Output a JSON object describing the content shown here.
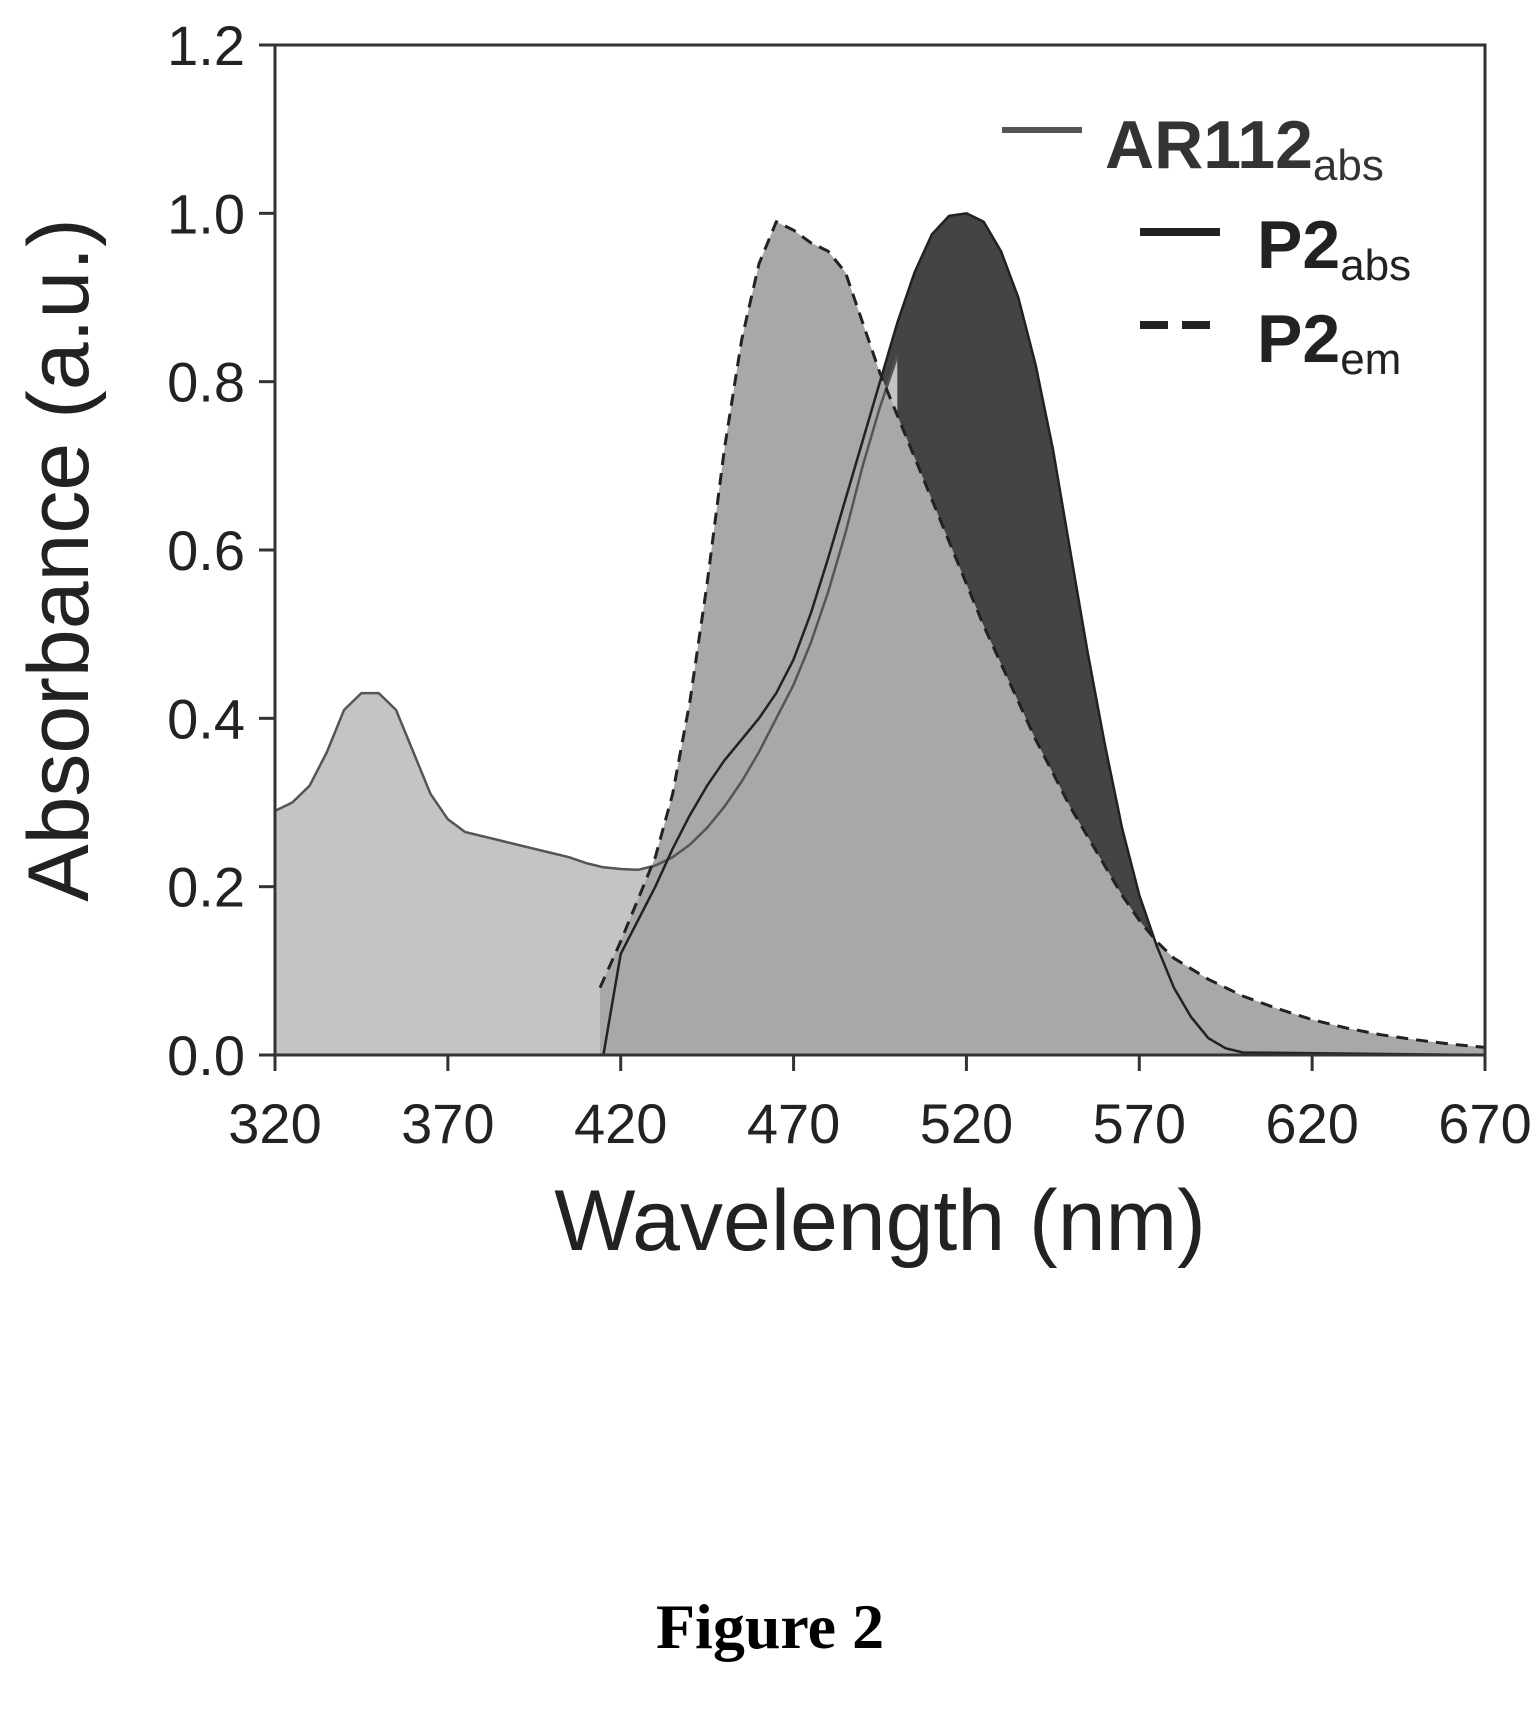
{
  "figure_caption": "Figure 2",
  "chart_data": {
    "type": "line",
    "xlabel": "Wavelength (nm)",
    "ylabel": "Absorbance (a.u.)",
    "xlim": [
      320,
      670
    ],
    "ylim": [
      0,
      1.2
    ],
    "x_ticks": [
      "320",
      "370",
      "420",
      "470",
      "520",
      "570",
      "620",
      "670"
    ],
    "y_ticks": [
      "0.0",
      "0.2",
      "0.4",
      "0.6",
      "0.8",
      "1.0",
      "1.2"
    ],
    "grid": false,
    "legend_position": "top-right",
    "series": [
      {
        "name": "AR112",
        "name_subscript": "abs",
        "style": "thin-solid",
        "fill": "#c4c4c4",
        "stroke": "#555555",
        "points": [
          [
            320,
            0.29
          ],
          [
            325,
            0.3
          ],
          [
            330,
            0.32
          ],
          [
            335,
            0.36
          ],
          [
            340,
            0.41
          ],
          [
            345,
            0.43
          ],
          [
            350,
            0.43
          ],
          [
            355,
            0.41
          ],
          [
            360,
            0.36
          ],
          [
            365,
            0.31
          ],
          [
            370,
            0.28
          ],
          [
            375,
            0.265
          ],
          [
            380,
            0.26
          ],
          [
            385,
            0.255
          ],
          [
            390,
            0.25
          ],
          [
            395,
            0.245
          ],
          [
            400,
            0.24
          ],
          [
            405,
            0.235
          ],
          [
            410,
            0.228
          ],
          [
            415,
            0.223
          ],
          [
            420,
            0.221
          ],
          [
            425,
            0.22
          ],
          [
            430,
            0.225
          ],
          [
            435,
            0.235
          ],
          [
            440,
            0.25
          ],
          [
            445,
            0.27
          ],
          [
            450,
            0.295
          ],
          [
            455,
            0.325
          ],
          [
            460,
            0.36
          ],
          [
            465,
            0.4
          ],
          [
            470,
            0.44
          ],
          [
            475,
            0.49
          ],
          [
            480,
            0.55
          ],
          [
            485,
            0.62
          ],
          [
            490,
            0.7
          ],
          [
            495,
            0.77
          ],
          [
            500,
            0.83
          ]
        ]
      },
      {
        "name": "P2",
        "name_subscript": "abs",
        "style": "bold-solid",
        "fill": "#444444",
        "stroke": "#222222",
        "points": [
          [
            320,
            0.0
          ],
          [
            415,
            0.0
          ],
          [
            420,
            0.12
          ],
          [
            425,
            0.16
          ],
          [
            430,
            0.2
          ],
          [
            435,
            0.245
          ],
          [
            440,
            0.285
          ],
          [
            445,
            0.32
          ],
          [
            450,
            0.35
          ],
          [
            455,
            0.375
          ],
          [
            460,
            0.4
          ],
          [
            465,
            0.43
          ],
          [
            470,
            0.47
          ],
          [
            475,
            0.525
          ],
          [
            480,
            0.59
          ],
          [
            485,
            0.66
          ],
          [
            490,
            0.73
          ],
          [
            495,
            0.8
          ],
          [
            500,
            0.87
          ],
          [
            505,
            0.93
          ],
          [
            510,
            0.975
          ],
          [
            515,
            0.997
          ],
          [
            520,
            1.0
          ],
          [
            525,
            0.99
          ],
          [
            530,
            0.955
          ],
          [
            535,
            0.9
          ],
          [
            540,
            0.82
          ],
          [
            545,
            0.72
          ],
          [
            550,
            0.6
          ],
          [
            555,
            0.48
          ],
          [
            560,
            0.37
          ],
          [
            565,
            0.27
          ],
          [
            570,
            0.19
          ],
          [
            575,
            0.13
          ],
          [
            580,
            0.08
          ],
          [
            585,
            0.045
          ],
          [
            590,
            0.02
          ],
          [
            595,
            0.008
          ],
          [
            600,
            0.003
          ],
          [
            670,
            0.0
          ]
        ]
      },
      {
        "name": "P2",
        "name_subscript": "em",
        "style": "dashed",
        "fill": "#a8a8a8",
        "stroke": "#222222",
        "points": [
          [
            414,
            0.08
          ],
          [
            420,
            0.135
          ],
          [
            425,
            0.185
          ],
          [
            430,
            0.235
          ],
          [
            435,
            0.31
          ],
          [
            440,
            0.42
          ],
          [
            445,
            0.56
          ],
          [
            450,
            0.72
          ],
          [
            455,
            0.85
          ],
          [
            460,
            0.94
          ],
          [
            465,
            0.99
          ],
          [
            470,
            0.98
          ],
          [
            475,
            0.965
          ],
          [
            480,
            0.955
          ],
          [
            485,
            0.93
          ],
          [
            490,
            0.87
          ],
          [
            495,
            0.81
          ],
          [
            500,
            0.76
          ],
          [
            505,
            0.71
          ],
          [
            510,
            0.66
          ],
          [
            515,
            0.61
          ],
          [
            520,
            0.56
          ],
          [
            525,
            0.51
          ],
          [
            530,
            0.465
          ],
          [
            535,
            0.42
          ],
          [
            540,
            0.375
          ],
          [
            545,
            0.335
          ],
          [
            550,
            0.295
          ],
          [
            555,
            0.26
          ],
          [
            560,
            0.225
          ],
          [
            565,
            0.19
          ],
          [
            570,
            0.16
          ],
          [
            575,
            0.135
          ],
          [
            580,
            0.115
          ],
          [
            590,
            0.09
          ],
          [
            600,
            0.07
          ],
          [
            610,
            0.055
          ],
          [
            620,
            0.042
          ],
          [
            630,
            0.032
          ],
          [
            640,
            0.024
          ],
          [
            650,
            0.018
          ],
          [
            660,
            0.013
          ],
          [
            670,
            0.009
          ]
        ]
      }
    ]
  }
}
